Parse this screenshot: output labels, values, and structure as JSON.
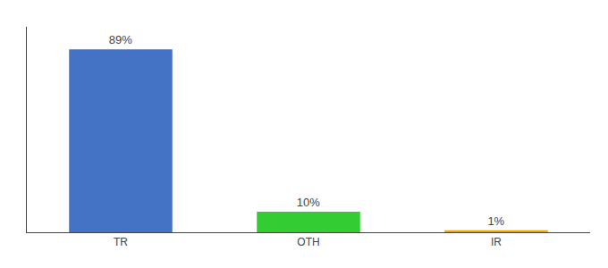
{
  "chart_data": {
    "type": "bar",
    "categories": [
      "TR",
      "OTH",
      "IR"
    ],
    "values": [
      89,
      10,
      1
    ],
    "value_labels": [
      "89%",
      "10%",
      "1%"
    ],
    "data_labels": true,
    "colors": [
      "#4472c4",
      "#33cc33",
      "#f0a500"
    ],
    "ylim": [
      0,
      100
    ],
    "grid": false,
    "tick_labels": "x"
  }
}
